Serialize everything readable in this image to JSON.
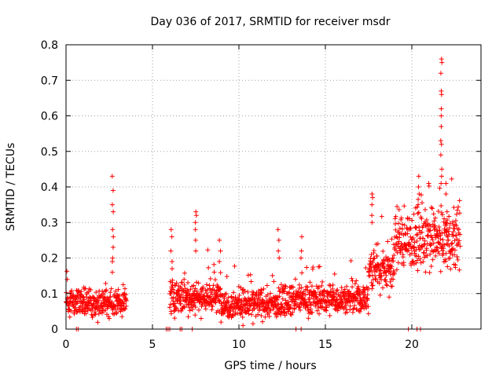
{
  "chart_data": {
    "type": "scatter",
    "title": "Day 036 of 2017, SRMTID for receiver msdr",
    "xlabel": "GPS time / hours",
    "ylabel": "SRMTID / TECUs",
    "xlim": [
      0,
      24
    ],
    "ylim": [
      0,
      0.8
    ],
    "xticks": [
      0,
      5,
      10,
      15,
      20
    ],
    "xtick_labels": [
      "0",
      "5",
      "10",
      "15",
      "20"
    ],
    "yticks": [
      0,
      0.1,
      0.2,
      0.3,
      0.4,
      0.5,
      0.6,
      0.7,
      0.8
    ],
    "ytick_labels": [
      "0",
      "0.1",
      "0.2",
      "0.3",
      "0.4",
      "0.5",
      "0.6",
      "0.7",
      "0.8"
    ],
    "grid": true,
    "marker": "plus",
    "marker_color": "#ff0000",
    "segments": [
      {
        "start": 0.0,
        "end": 3.5,
        "base": 0.075,
        "spread": 0.04
      },
      {
        "start": 6.0,
        "end": 9.0,
        "base": 0.09,
        "spread": 0.05
      },
      {
        "start": 9.0,
        "end": 12.5,
        "base": 0.07,
        "spread": 0.045
      },
      {
        "start": 12.5,
        "end": 17.5,
        "base": 0.085,
        "spread": 0.045
      },
      {
        "start": 17.5,
        "end": 19.0,
        "base": 0.17,
        "spread": 0.07
      },
      {
        "start": 19.0,
        "end": 22.8,
        "base": 0.25,
        "spread": 0.09
      }
    ],
    "spikes": [
      {
        "x": 2.7,
        "values": [
          0.43,
          0.39,
          0.35,
          0.33,
          0.28,
          0.26,
          0.23,
          0.2,
          0.19,
          0.16
        ]
      },
      {
        "x": 6.1,
        "values": [
          0.28,
          0.26,
          0.22,
          0.19,
          0.17
        ]
      },
      {
        "x": 7.5,
        "values": [
          0.33,
          0.32,
          0.3,
          0.28,
          0.25,
          0.22
        ]
      },
      {
        "x": 8.9,
        "values": [
          0.25,
          0.22,
          0.19
        ]
      },
      {
        "x": 12.3,
        "values": [
          0.28,
          0.25,
          0.22,
          0.2
        ]
      },
      {
        "x": 13.6,
        "values": [
          0.26,
          0.22,
          0.2
        ]
      },
      {
        "x": 17.7,
        "values": [
          0.38,
          0.37,
          0.35,
          0.32,
          0.3
        ]
      },
      {
        "x": 20.4,
        "values": [
          0.43,
          0.4,
          0.38,
          0.35
        ]
      },
      {
        "x": 21.7,
        "values": [
          0.76,
          0.75,
          0.72,
          0.67,
          0.66,
          0.62,
          0.6,
          0.57,
          0.53,
          0.52,
          0.49,
          0.45,
          0.43,
          0.41
        ]
      },
      {
        "x": 22.0,
        "values": [
          0.41,
          0.38,
          0.33,
          0.3,
          0.28
        ]
      }
    ],
    "zero_points": [
      0.6,
      0.7,
      5.8,
      5.9,
      6.0,
      6.6,
      6.7,
      7.3,
      13.3,
      13.6,
      19.8,
      20.3,
      20.5
    ]
  }
}
